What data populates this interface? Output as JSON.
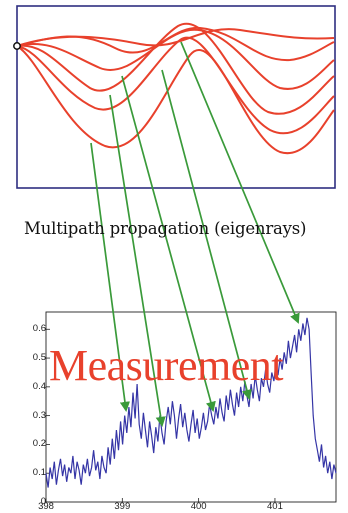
{
  "caption": "Multipath propagation (eigenrays)",
  "measurement_label": "Measurement",
  "colors": {
    "rays": "#e8412c",
    "arrows": "#3a9a3a",
    "signal": "#3535a6",
    "frame": "#2e2e80"
  },
  "chart_data": {
    "type": "line",
    "series": [
      {
        "values": [
          0.1,
          0.05,
          0.12,
          0.08,
          0.14,
          0.06,
          0.11,
          0.15,
          0.09,
          0.13,
          0.07,
          0.12,
          0.1,
          0.16,
          0.08,
          0.14,
          0.11,
          0.06,
          0.13,
          0.1,
          0.15,
          0.09,
          0.12,
          0.18,
          0.11,
          0.14,
          0.08,
          0.16,
          0.12,
          0.1,
          0.19,
          0.13,
          0.22,
          0.15,
          0.25,
          0.18,
          0.28,
          0.2,
          0.3,
          0.24,
          0.33,
          0.26,
          0.38,
          0.29,
          0.41,
          0.27,
          0.22,
          0.31,
          0.25,
          0.19,
          0.28,
          0.23,
          0.17,
          0.26,
          0.21,
          0.3,
          0.24,
          0.2,
          0.28,
          0.33,
          0.27,
          0.35,
          0.3,
          0.22,
          0.29,
          0.34,
          0.26,
          0.31,
          0.25,
          0.21,
          0.27,
          0.32,
          0.24,
          0.29,
          0.22,
          0.26,
          0.31,
          0.25,
          0.28,
          0.34,
          0.3,
          0.27,
          0.33,
          0.29,
          0.36,
          0.31,
          0.28,
          0.37,
          0.32,
          0.39,
          0.34,
          0.3,
          0.38,
          0.33,
          0.4,
          0.35,
          0.42,
          0.37,
          0.33,
          0.41,
          0.36,
          0.44,
          0.39,
          0.35,
          0.43,
          0.4,
          0.46,
          0.41,
          0.38,
          0.45,
          0.42,
          0.48,
          0.44,
          0.5,
          0.46,
          0.52,
          0.48,
          0.56,
          0.5,
          0.54,
          0.58,
          0.52,
          0.6,
          0.56,
          0.62,
          0.58,
          0.64,
          0.6,
          0.45,
          0.3,
          0.22,
          0.18,
          0.14,
          0.2,
          0.12,
          0.16,
          0.1,
          0.14,
          0.08,
          0.13,
          0.1
        ]
      }
    ],
    "xlim": [
      398,
      401.8
    ],
    "ylim": [
      0,
      0.66
    ],
    "xticks": [
      "398",
      "399",
      "400",
      "401"
    ],
    "xtick_values": [
      398,
      399,
      400,
      401
    ],
    "yticks": [
      "0",
      "0.1",
      "0.2",
      "0.3",
      "0.4",
      "0.5",
      "0.6"
    ],
    "ytick_values": [
      0,
      0.1,
      0.2,
      0.3,
      0.4,
      0.5,
      0.6
    ]
  }
}
